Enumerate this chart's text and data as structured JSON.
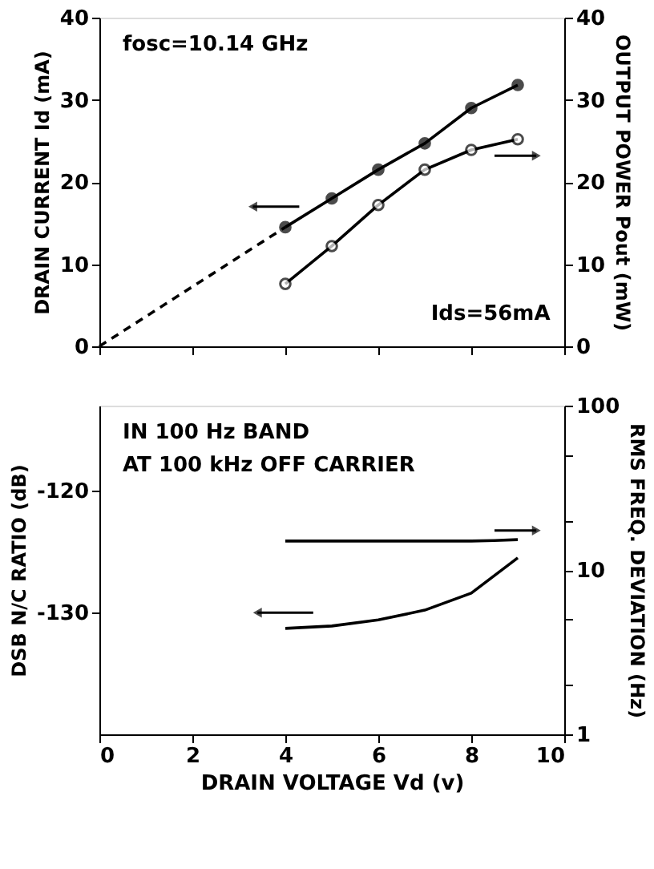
{
  "chart_data": [
    {
      "type": "line",
      "ylabel": "DRAIN CURRENT Id (mA)",
      "y2label": "OUTPUT POWER Pout (mW)",
      "annotations": [
        "fosc=10.14 GHz",
        "Ids=56mA"
      ],
      "xlim": [
        0,
        10
      ],
      "xticks": [
        0,
        2,
        4,
        6,
        8,
        10
      ],
      "ylim": [
        0,
        40
      ],
      "yticks": [
        0,
        10,
        20,
        30,
        40
      ],
      "y2lim": [
        0,
        40
      ],
      "y2ticks": [
        0,
        10,
        20,
        30,
        40
      ],
      "tick_labels": "y",
      "grid": false,
      "legend": false,
      "series": [
        {
          "color": "#000000",
          "x": [
            4,
            5,
            6,
            7,
            8,
            9
          ],
          "values": [
            14.5,
            18,
            21.5,
            24.7,
            29,
            31.8
          ],
          "marker": "circle",
          "line_style": "solid"
        },
        {
          "color": "#000000",
          "x": [
            0,
            4
          ],
          "values": [
            0,
            14.5
          ],
          "marker": "none",
          "line_style": "dashed"
        },
        {
          "color": "#000000",
          "axis": "y2",
          "x": [
            4,
            5,
            6,
            7,
            8,
            9
          ],
          "values": [
            7.6,
            12.2,
            17.2,
            21.5,
            23.9,
            25.2
          ],
          "marker": "circle",
          "line_style": "solid"
        }
      ]
    },
    {
      "type": "line",
      "xlabel": "DRAIN VOLTAGE Vd (v)",
      "ylabel": "DSB N/C RATIO (dB)",
      "y2label": "RMS FREQ. DEVIATION (Hz)",
      "annotations": [
        "IN 100 Hz BAND",
        "AT 100 kHz OFF CARRIER"
      ],
      "xlim": [
        0,
        10
      ],
      "xticks": [
        0,
        2,
        4,
        6,
        8,
        10
      ],
      "ylim": [
        -140,
        -113
      ],
      "yticks": [
        -120,
        -130
      ],
      "y2lim": [
        1,
        100
      ],
      "y2ticks": [
        1,
        {
          "value": 2,
          "label": null
        },
        {
          "value": 5,
          "label": null
        },
        10,
        {
          "value": 20,
          "label": null
        },
        {
          "value": 50,
          "label": null
        },
        100
      ],
      "log": "y2",
      "grid": false,
      "legend": false,
      "series": [
        {
          "color": "#000000",
          "x": [
            4,
            5,
            6,
            7,
            8,
            9
          ],
          "values": [
            -131.3,
            -131.1,
            -130.6,
            -129.8,
            -128.4,
            -125.5
          ],
          "marker": "none",
          "line_style": "solid"
        },
        {
          "color": "#000000",
          "axis": "y2",
          "x": [
            4,
            5,
            6,
            7,
            8,
            8.5,
            9
          ],
          "values": [
            15,
            15,
            15,
            15,
            15,
            15.1,
            15.3
          ],
          "marker": "none",
          "line_style": "solid"
        }
      ]
    }
  ]
}
